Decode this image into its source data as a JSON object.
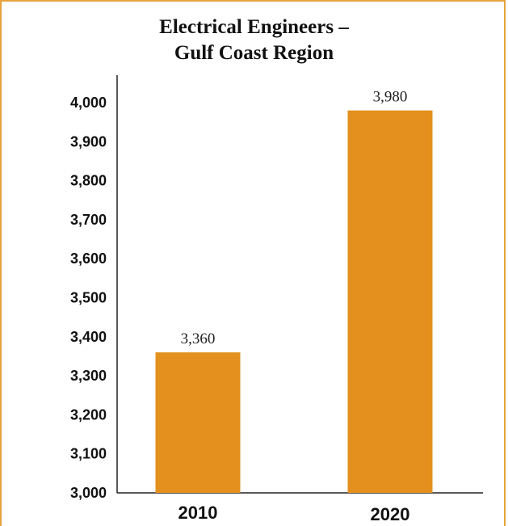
{
  "chart_data": {
    "type": "bar",
    "title_lines": [
      "Electrical Engineers –",
      "Gulf Coast Region"
    ],
    "categories": [
      "2010",
      "2020"
    ],
    "values": [
      3360,
      3980
    ],
    "data_labels": [
      "3,360",
      "3,980"
    ],
    "ylim": [
      3000,
      4000
    ],
    "yticks": [
      3000,
      3100,
      3200,
      3300,
      3400,
      3500,
      3600,
      3700,
      3800,
      3900,
      4000
    ],
    "ytick_labels": [
      "3,000",
      "3,100",
      "3,200",
      "3,300",
      "3,400",
      "3,500",
      "3,600",
      "3,700",
      "3,800",
      "3,900",
      "4,000"
    ],
    "grid": false,
    "legend": "none",
    "xlabel": "",
    "ylabel": ""
  },
  "colors": {
    "bar": "#E3901E",
    "frame": "#E8A33A",
    "axis": "#222222"
  }
}
